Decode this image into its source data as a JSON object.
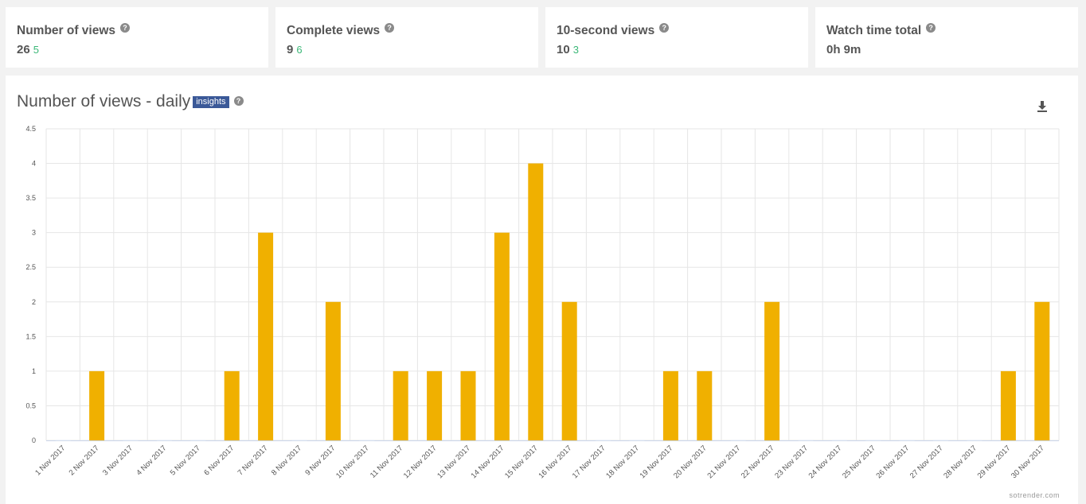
{
  "stats": [
    {
      "title": "Number of views",
      "value": "26",
      "delta": "5"
    },
    {
      "title": "Complete views",
      "value": "9",
      "delta": "6"
    },
    {
      "title": "10-second views",
      "value": "10",
      "delta": "3"
    },
    {
      "title": "Watch time total",
      "value": "0h 9m",
      "delta": ""
    }
  ],
  "help_glyph": "?",
  "chart_panel": {
    "title": "Number of views - daily",
    "badge": "insights",
    "download_icon": "download-icon",
    "watermark": "sotrender.com"
  },
  "colors": {
    "bar": "#f0b000",
    "delta": "#3cb878",
    "badge": "#3b5998"
  },
  "chart_data": {
    "type": "bar",
    "title": "Number of views - daily",
    "xlabel": "",
    "ylabel": "",
    "ylim": [
      0,
      4.5
    ],
    "yticks": [
      "0",
      "0.5",
      "1",
      "1.5",
      "2",
      "2.5",
      "3",
      "3.5",
      "4",
      "4.5"
    ],
    "grid": true,
    "categories": [
      "1 Nov 2017",
      "2 Nov 2017",
      "3 Nov 2017",
      "4 Nov 2017",
      "5 Nov 2017",
      "6 Nov 2017",
      "7 Nov 2017",
      "8 Nov 2017",
      "9 Nov 2017",
      "10 Nov 2017",
      "11 Nov 2017",
      "12 Nov 2017",
      "13 Nov 2017",
      "14 Nov 2017",
      "15 Nov 2017",
      "16 Nov 2017",
      "17 Nov 2017",
      "18 Nov 2017",
      "19 Nov 2017",
      "20 Nov 2017",
      "21 Nov 2017",
      "22 Nov 2017",
      "23 Nov 2017",
      "24 Nov 2017",
      "25 Nov 2017",
      "26 Nov 2017",
      "27 Nov 2017",
      "28 Nov 2017",
      "29 Nov 2017",
      "30 Nov 2017"
    ],
    "values": [
      0,
      1,
      0,
      0,
      0,
      1,
      3,
      0,
      2,
      0,
      1,
      1,
      1,
      3,
      4,
      2,
      0,
      0,
      1,
      1,
      0,
      2,
      0,
      0,
      0,
      0,
      0,
      0,
      1,
      2
    ]
  }
}
